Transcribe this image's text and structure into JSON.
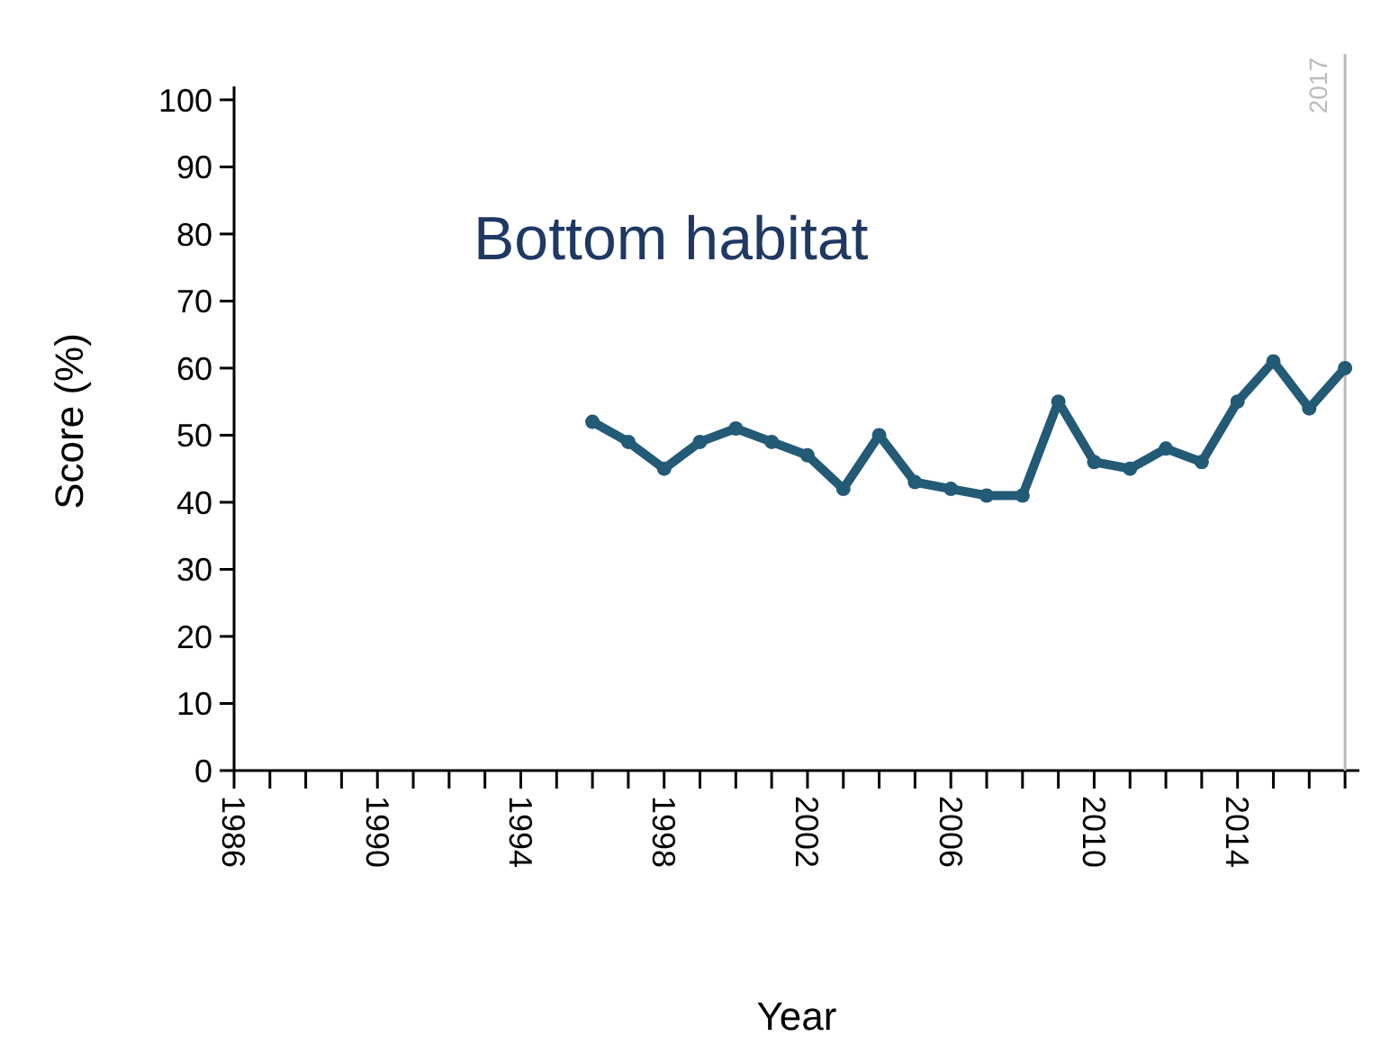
{
  "chart_data": {
    "type": "line",
    "title": "Bottom habitat",
    "xlabel": "Year",
    "ylabel": "Score (%)",
    "x": [
      1996,
      1997,
      1998,
      1999,
      2000,
      2001,
      2002,
      2003,
      2004,
      2005,
      2006,
      2007,
      2008,
      2009,
      2010,
      2011,
      2012,
      2013,
      2014,
      2015,
      2016,
      2017
    ],
    "series": [
      {
        "color": "#235a75",
        "values": [
          52,
          49,
          45,
          49,
          51,
          49,
          47,
          42,
          50,
          43,
          42,
          41,
          41,
          55,
          46,
          45,
          48,
          46,
          55,
          61,
          54,
          60
        ]
      }
    ],
    "xlim": [
      1986,
      2017.4
    ],
    "xticks": [
      1986,
      {
        "value": 1987,
        "label": null
      },
      {
        "value": 1988,
        "label": null
      },
      {
        "value": 1989,
        "label": null
      },
      1990,
      {
        "value": 1991,
        "label": null
      },
      {
        "value": 1992,
        "label": null
      },
      {
        "value": 1993,
        "label": null
      },
      1994,
      {
        "value": 1995,
        "label": null
      },
      {
        "value": 1996,
        "label": null
      },
      {
        "value": 1997,
        "label": null
      },
      1998,
      {
        "value": 1999,
        "label": null
      },
      {
        "value": 2000,
        "label": null
      },
      {
        "value": 2001,
        "label": null
      },
      2002,
      {
        "value": 2003,
        "label": null
      },
      {
        "value": 2004,
        "label": null
      },
      {
        "value": 2005,
        "label": null
      },
      2006,
      {
        "value": 2007,
        "label": null
      },
      {
        "value": 2008,
        "label": null
      },
      {
        "value": 2009,
        "label": null
      },
      2010,
      {
        "value": 2011,
        "label": null
      },
      {
        "value": 2012,
        "label": null
      },
      {
        "value": 2013,
        "label": null
      },
      2014,
      {
        "value": 2015,
        "label": null
      },
      {
        "value": 2016,
        "label": null
      },
      {
        "value": 2017,
        "label": null
      }
    ],
    "ylim": [
      0,
      102
    ],
    "yticks": [
      0,
      10,
      20,
      30,
      40,
      50,
      60,
      70,
      80,
      90,
      100
    ],
    "ref_lines": [
      {
        "axis": "x",
        "value": 2017,
        "label": "2017",
        "color": "#bbbbbb"
      }
    ],
    "marker": "circle",
    "line_style": "solid"
  }
}
